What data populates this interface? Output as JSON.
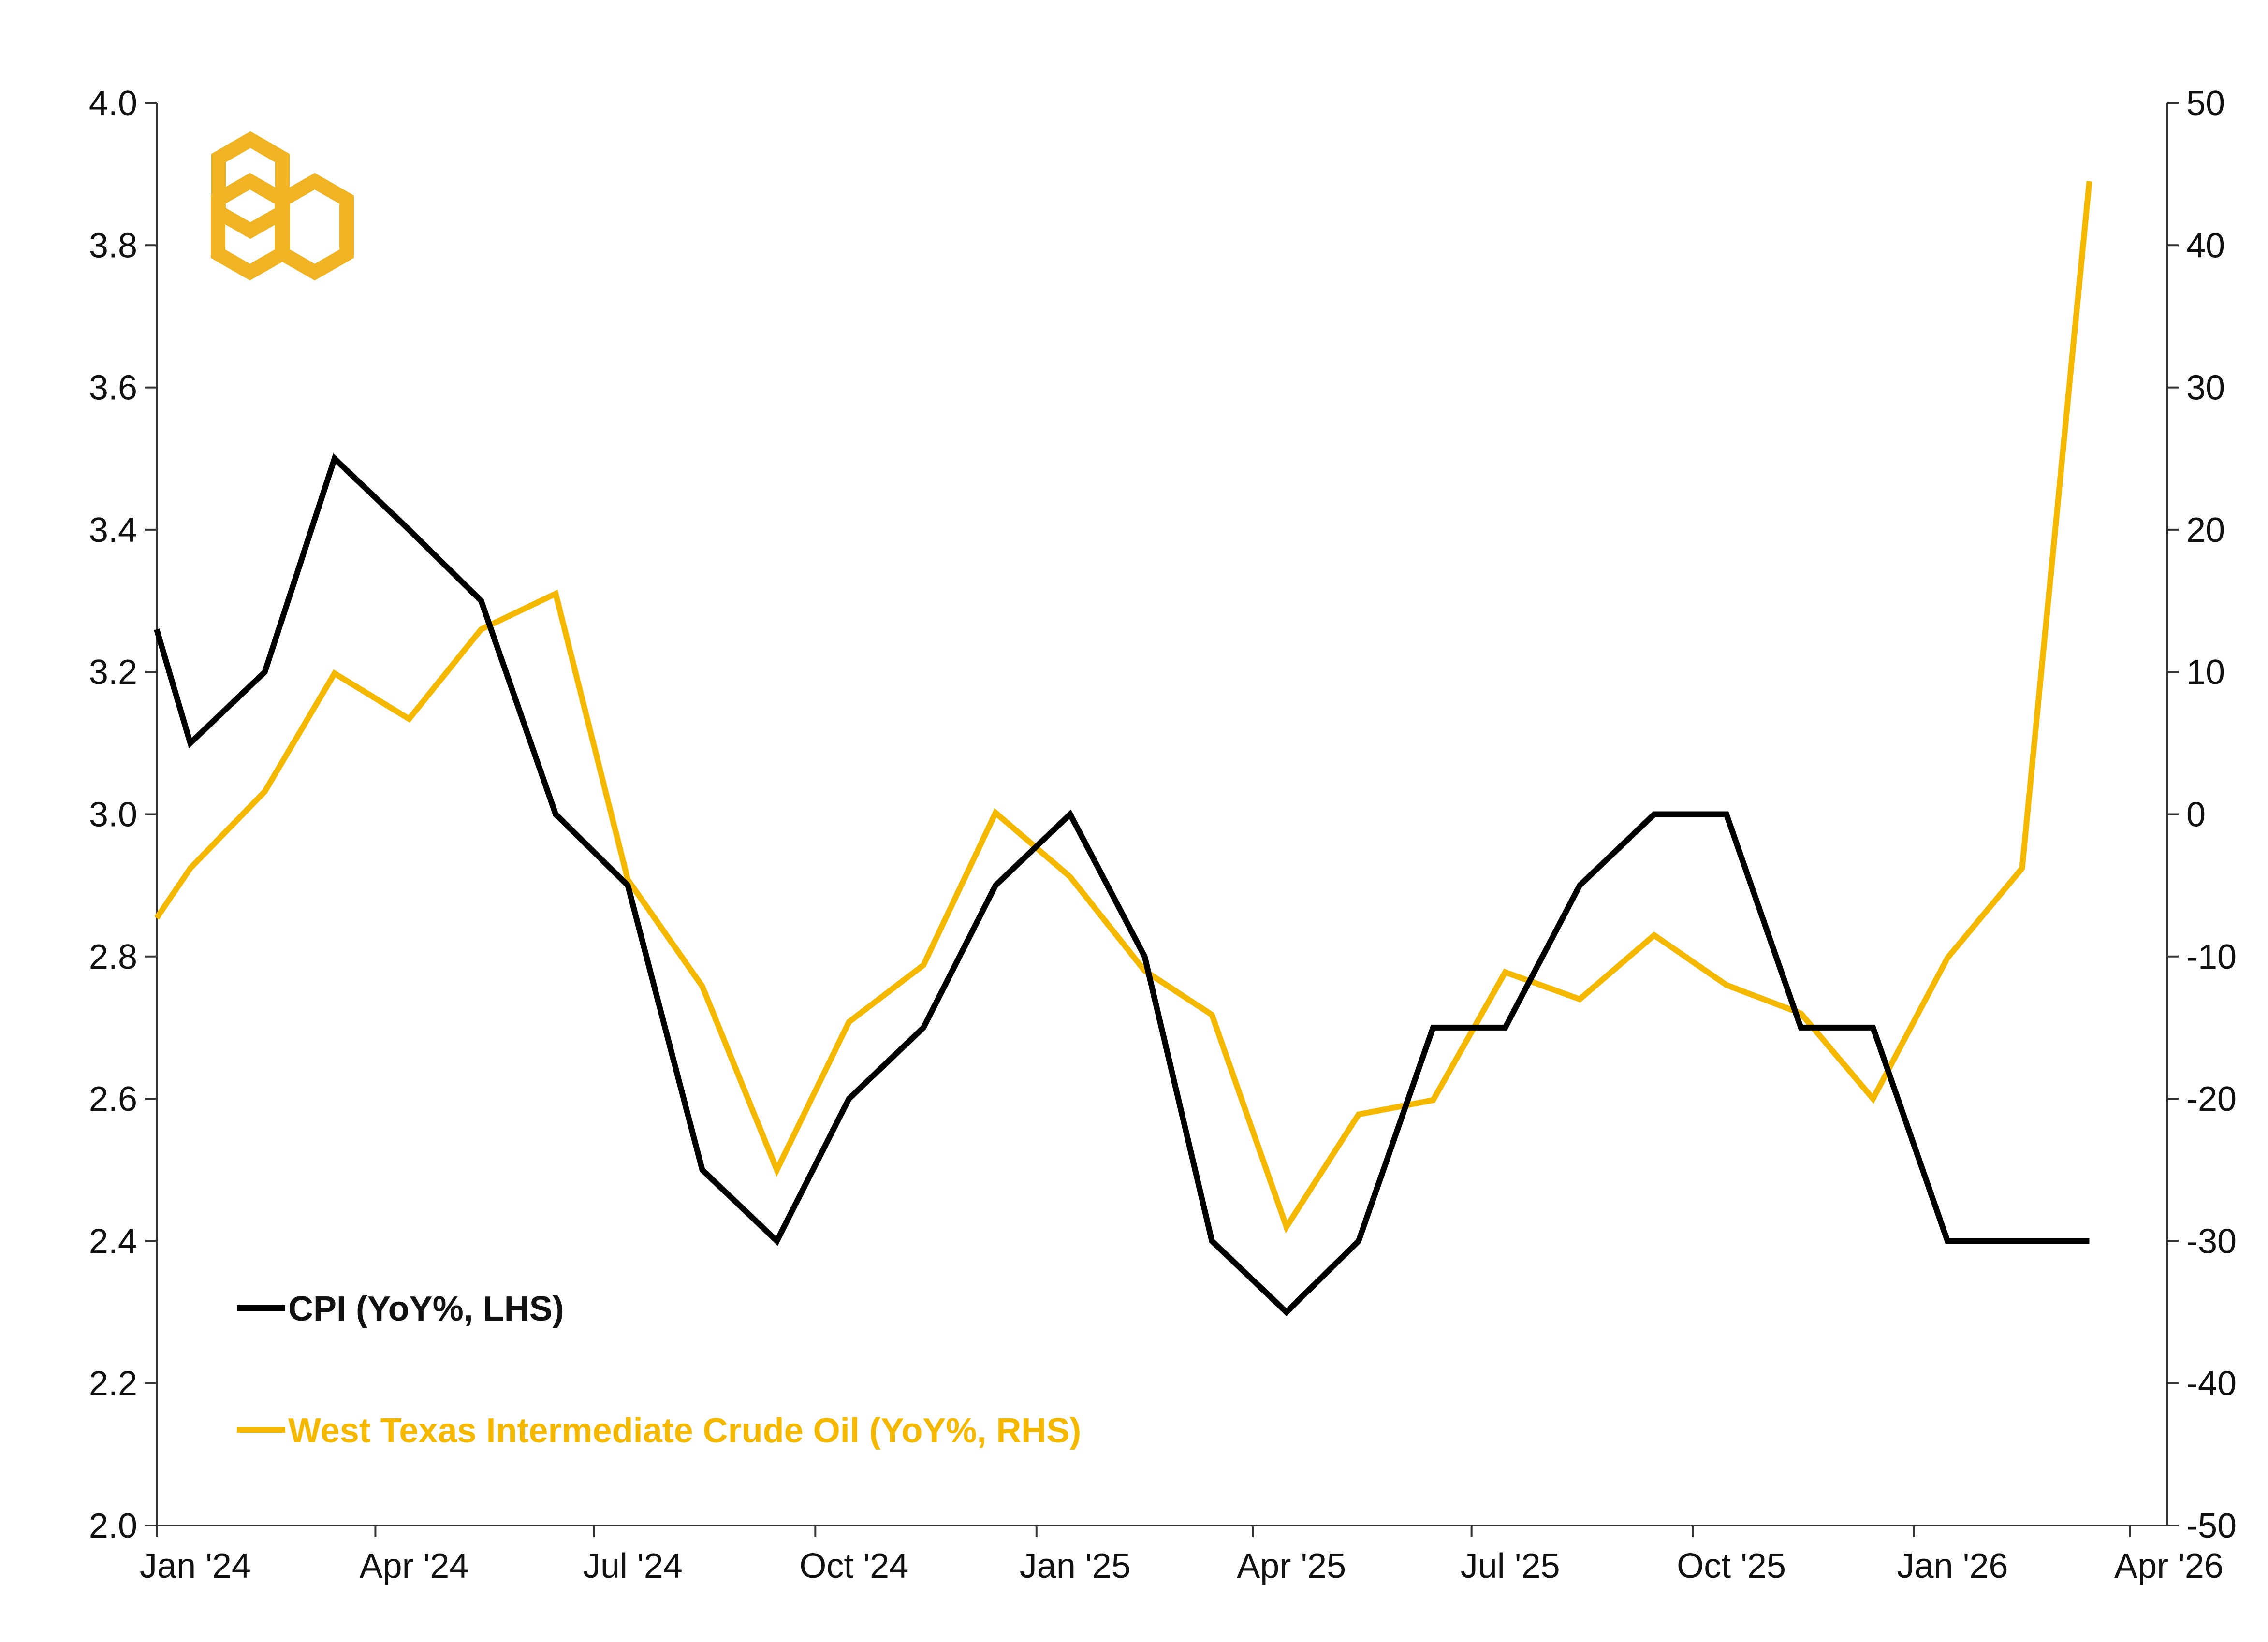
{
  "chart_data": {
    "type": "line",
    "title": "",
    "xlabel": "",
    "ylabel_left": "",
    "ylabel_right": "",
    "x_tick_labels": [
      "Jan '24",
      "Apr '24",
      "Jul '24",
      "Oct '24",
      "Jan '25",
      "Apr '25",
      "Jul '25",
      "Oct '25",
      "Jan '26",
      "Apr '26"
    ],
    "y_left_ticks": [
      "2.0",
      "2.2",
      "2.4",
      "2.6",
      "2.8",
      "3.0",
      "3.2",
      "3.4",
      "3.6",
      "3.8",
      "4.0"
    ],
    "y_right_ticks": [
      "-50",
      "-40",
      "-30",
      "-20",
      "-10",
      "0",
      "10",
      "20",
      "30",
      "40",
      "50"
    ],
    "ylim_left": [
      2.0,
      4.0
    ],
    "ylim_right": [
      -50,
      50
    ],
    "grid": false,
    "legend_placement": "bottom-left",
    "series": [
      {
        "name": "CPI (YoY%, LHS)",
        "axis": "left",
        "color": "#000000",
        "x": [
          "2024-01-01",
          "2024-01-15",
          "2024-02-15",
          "2024-03-15",
          "2024-04-15",
          "2024-05-15",
          "2024-06-15",
          "2024-07-15",
          "2024-08-15",
          "2024-09-15",
          "2024-10-15",
          "2024-11-15",
          "2024-12-15",
          "2025-01-15",
          "2025-02-15",
          "2025-03-15",
          "2025-04-15",
          "2025-05-15",
          "2025-06-15",
          "2025-07-15",
          "2025-08-15",
          "2025-09-15",
          "2025-10-15",
          "2025-11-15",
          "2025-12-15",
          "2026-01-15",
          "2026-02-15",
          "2026-03-15"
        ],
        "values": [
          3.26,
          3.1,
          3.2,
          3.5,
          3.4,
          3.3,
          3.0,
          2.9,
          2.5,
          2.4,
          2.6,
          2.7,
          2.9,
          3.0,
          2.8,
          2.4,
          2.3,
          2.4,
          2.7,
          2.7,
          2.9,
          3.0,
          3.0,
          2.7,
          2.7,
          2.4,
          2.4,
          2.4
        ]
      },
      {
        "name": "West Texas Intermediate Crude Oil (YoY%, RHS)",
        "axis": "right",
        "color": "#F5B800",
        "x": [
          "2024-01-01",
          "2024-01-15",
          "2024-02-15",
          "2024-03-15",
          "2024-04-15",
          "2024-05-15",
          "2024-06-15",
          "2024-07-15",
          "2024-08-15",
          "2024-09-15",
          "2024-10-15",
          "2024-11-15",
          "2024-12-15",
          "2025-01-15",
          "2025-02-15",
          "2025-03-15",
          "2025-04-15",
          "2025-05-15",
          "2025-06-15",
          "2025-07-15",
          "2025-08-15",
          "2025-09-15",
          "2025-10-15",
          "2025-11-15",
          "2025-12-15",
          "2026-01-15",
          "2026-02-15",
          "2026-03-15"
        ],
        "values": [
          -7.3,
          -3.8,
          1.6,
          9.9,
          6.7,
          13.0,
          15.5,
          -4.6,
          -12.1,
          -25.0,
          -14.6,
          -10.6,
          0.1,
          -4.4,
          -11.0,
          -14.1,
          -29.0,
          -21.1,
          -20.1,
          -11.1,
          -13.0,
          -8.5,
          -12.0,
          -14.0,
          -20.0,
          -10.1,
          -3.8,
          44.5
        ]
      }
    ]
  },
  "colors": {
    "cpi": "#000000",
    "oil": "#F5B800",
    "axis": "#333333",
    "logo": "#F0B323"
  },
  "logo": {
    "icon": "hexagon-logo-icon"
  }
}
